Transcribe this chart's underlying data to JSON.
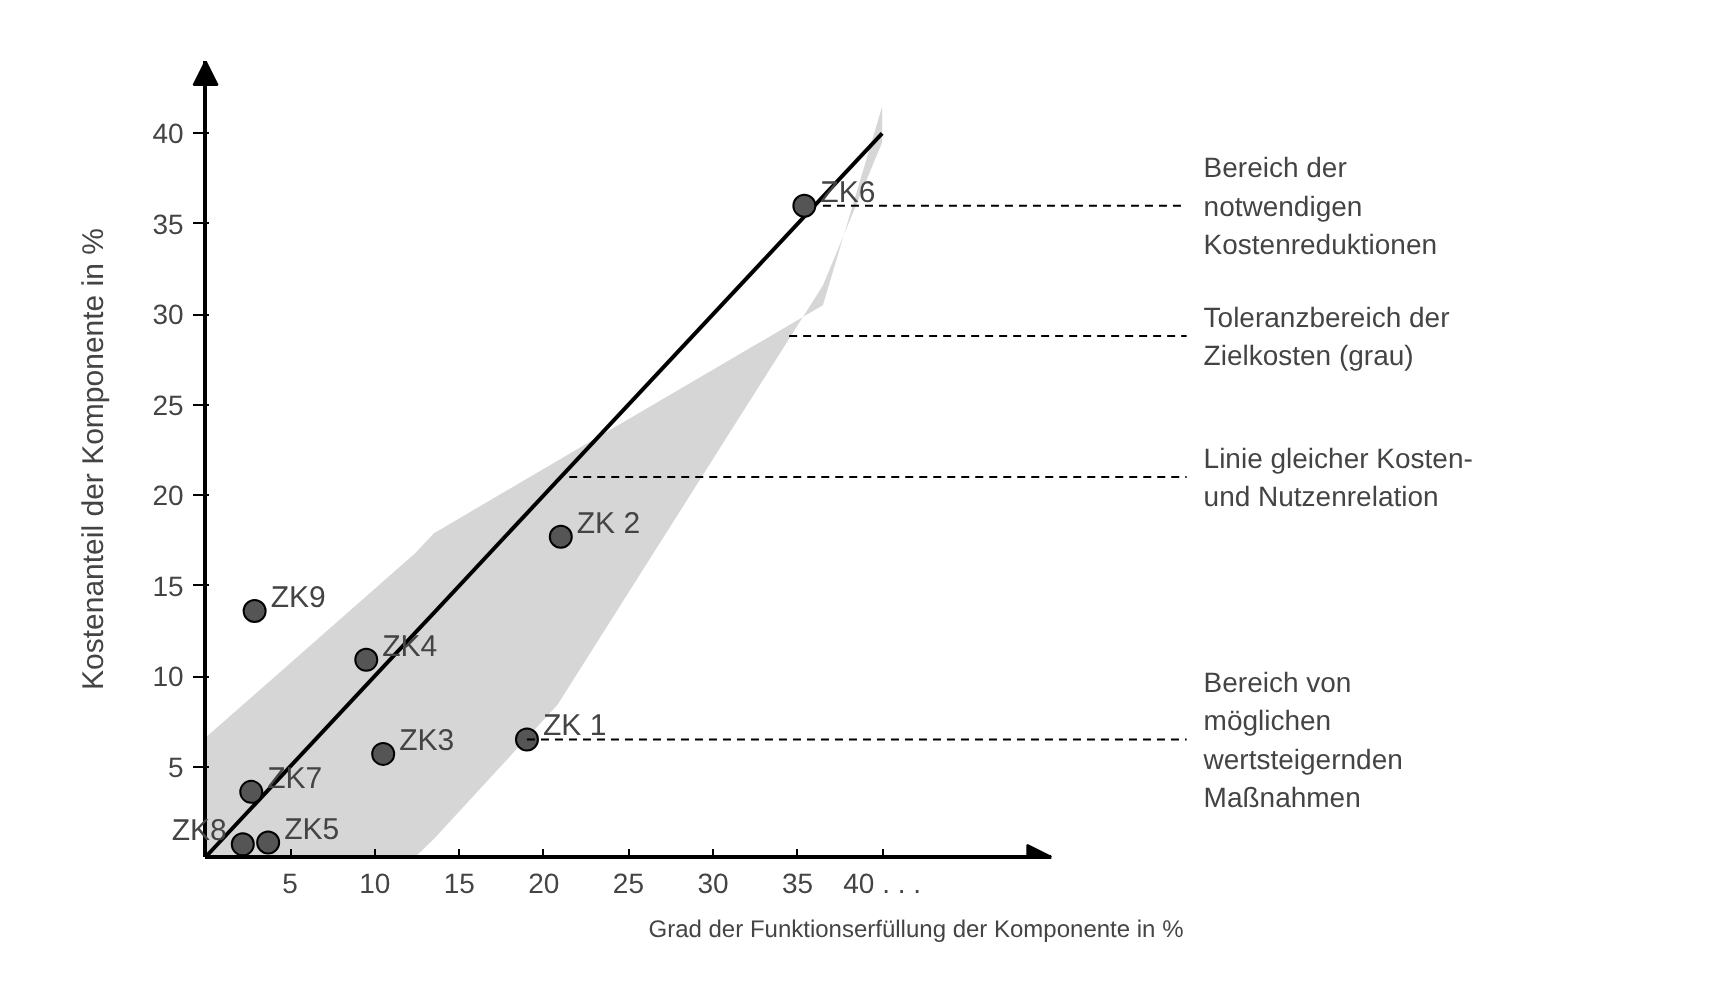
{
  "chart_data": {
    "type": "scatter",
    "xlabel": "Grad der Funktionserfüllung der Komponente in %",
    "ylabel": "Kostenanteil der Komponente in %",
    "xlim": [
      0,
      50
    ],
    "ylim": [
      0,
      44
    ],
    "xticks": [
      5,
      10,
      15,
      20,
      25,
      30,
      35,
      {
        "value": 40,
        "label": "40 . . ."
      }
    ],
    "yticks": [
      5,
      10,
      15,
      20,
      25,
      30,
      35,
      40
    ],
    "grid": false,
    "marker": "circle",
    "series": [
      {
        "type": "line",
        "color": "#000000",
        "x": [
          0,
          12.4,
          13.5,
          20.8,
          36.5,
          40
        ],
        "values": [
          0,
          12.4,
          13.5,
          20.8,
          36.5,
          40
        ],
        "lower": [
          0,
          0,
          1,
          8.4,
          31.6,
          39.5
        ],
        "upper": [
          6.6,
          16.8,
          17.9,
          21.9,
          30.5,
          41.5
        ],
        "marker": "none"
      },
      {
        "name": "ZK6",
        "color": "#555555",
        "x": [
          35.4
        ],
        "values": [
          36
        ]
      },
      {
        "name": "ZK 2",
        "color": "#555555",
        "x": [
          21
        ],
        "values": [
          17.7
        ]
      },
      {
        "name": "ZK9",
        "color": "#555555",
        "x": [
          2.9
        ],
        "values": [
          13.6
        ]
      },
      {
        "name": "ZK4",
        "color": "#555555",
        "x": [
          9.5
        ],
        "values": [
          10.9
        ]
      },
      {
        "name": "ZK3",
        "color": "#555555",
        "x": [
          10.5
        ],
        "values": [
          5.7
        ]
      },
      {
        "name": "ZK 1",
        "color": "#555555",
        "x": [
          19
        ],
        "values": [
          6.5
        ]
      },
      {
        "name": "ZK7",
        "color": "#555555",
        "x": [
          2.7
        ],
        "values": [
          3.6
        ]
      },
      {
        "name": "ZK8",
        "color": "#555555",
        "x": [
          2.2
        ],
        "values": [
          0.7
        ]
      },
      {
        "name": "ZK5",
        "color": "#555555",
        "x": [
          3.7
        ],
        "values": [
          0.8
        ]
      }
    ],
    "annotations": [
      {
        "text": "Bereich der\nnotwendigen\nKostenreduktionen",
        "x": 36.5,
        "y": 36
      },
      {
        "text": "Toleranzbereich der\nZielkosten (grau)",
        "x": 34.5,
        "y": 28.8
      },
      {
        "text": "Linie gleicher Kosten-\nund Nutzenrelation",
        "x": 21.5,
        "y": 21
      },
      {
        "text": "Bereich von\nmöglichen\nwertsteigernden\nMaßnahmen",
        "x": 19,
        "y": 6.5
      }
    ]
  }
}
